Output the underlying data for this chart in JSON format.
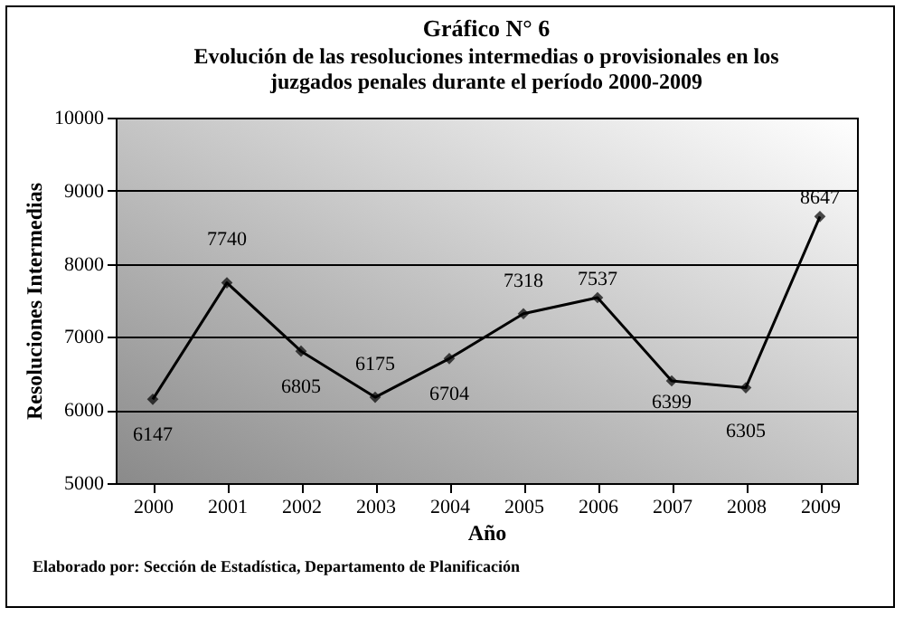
{
  "chart_data": {
    "type": "line",
    "title": "Gráfico N° 6",
    "subtitle": "Evolución de las resoluciones intermedias o provisionales en los juzgados penales durante el período 2000-2009",
    "xlabel": "Año",
    "ylabel": "Resoluciones Intermedias",
    "categories": [
      "2000",
      "2001",
      "2002",
      "2003",
      "2004",
      "2005",
      "2006",
      "2007",
      "2008",
      "2009"
    ],
    "series": [
      {
        "color": "#000000",
        "values": [
          6147,
          7740,
          6805,
          6175,
          6704,
          7318,
          7537,
          6399,
          6305,
          8647
        ]
      }
    ],
    "ylim": [
      5000,
      10000
    ],
    "yticks": [
      5000,
      6000,
      7000,
      8000,
      9000,
      10000
    ],
    "grid": "y",
    "marker": "diamond",
    "line_style": "solid",
    "data_labels": true,
    "legend": false,
    "annotations": [
      "Elaborado por: Sección de Estadística, Departamento de Planificación"
    ]
  }
}
